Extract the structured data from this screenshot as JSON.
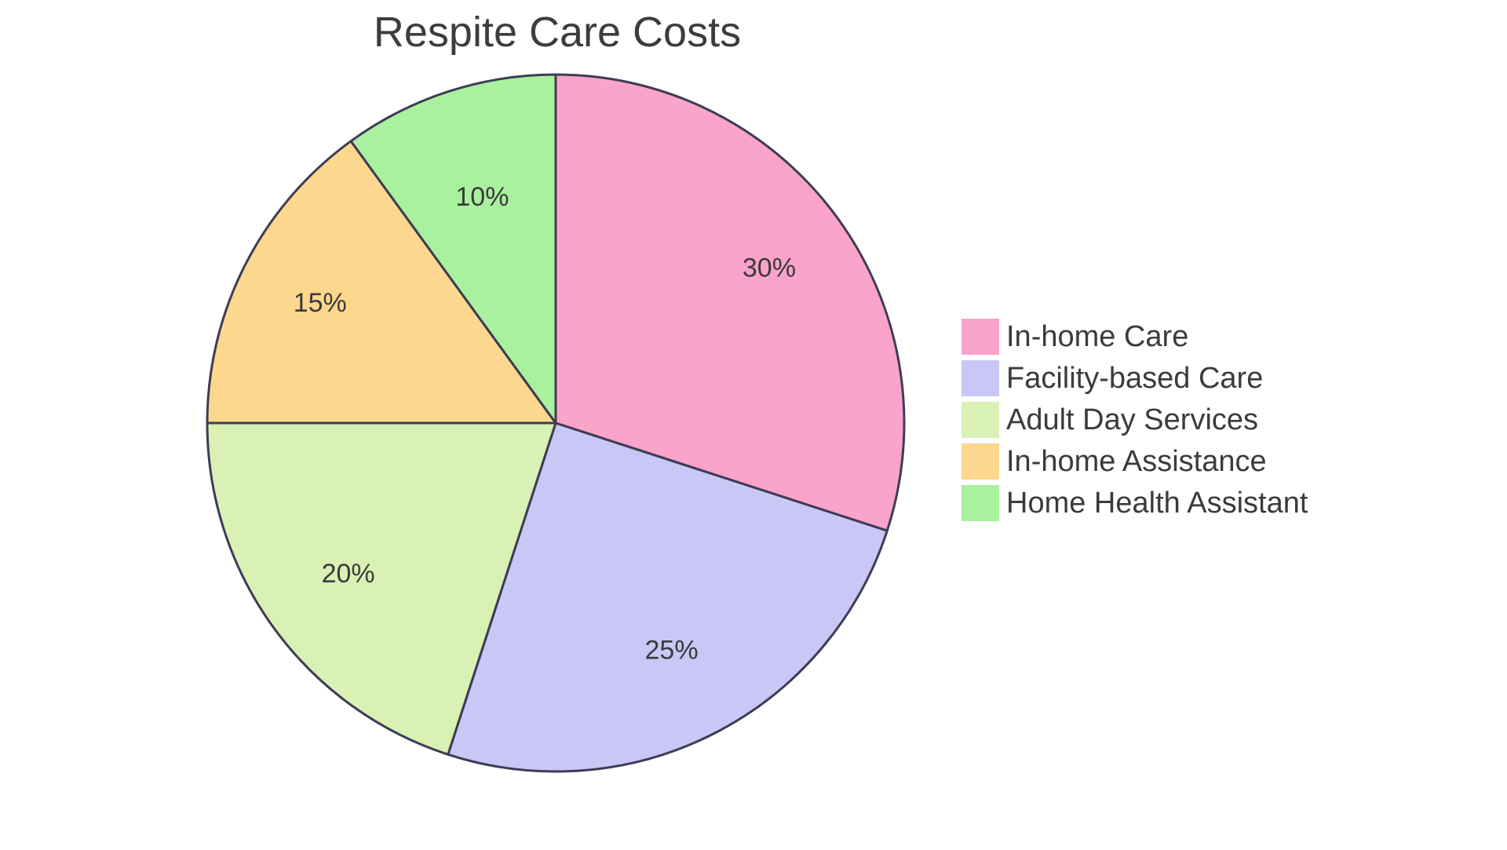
{
  "chart_data": {
    "type": "pie",
    "title": "Respite Care Costs",
    "slices": [
      {
        "label": "In-home Care",
        "value": 30,
        "pct_label": "30%",
        "color": "#FAA3CB"
      },
      {
        "label": "Facility-based Care",
        "value": 25,
        "pct_label": "25%",
        "color": "#C9C7F5"
      },
      {
        "label": "Adult Day Services",
        "value": 20,
        "pct_label": "20%",
        "color": "#D9F1B5"
      },
      {
        "label": "In-home Assistance",
        "value": 15,
        "pct_label": "15%",
        "color": "#FCD88E"
      },
      {
        "label": "Home Health Assistant",
        "value": 10,
        "pct_label": "10%",
        "color": "#A9F19E"
      }
    ],
    "direction": "clockwise",
    "start_angle_deg_clockwise_from_top": 0,
    "border_color": "#3E3C55",
    "label_color": "#3B3B3B",
    "label_radius_ratios": [
      0.757,
      0.732,
      0.736,
      0.759,
      0.682
    ],
    "legend_position": "right",
    "background": "#FFFFFF"
  }
}
